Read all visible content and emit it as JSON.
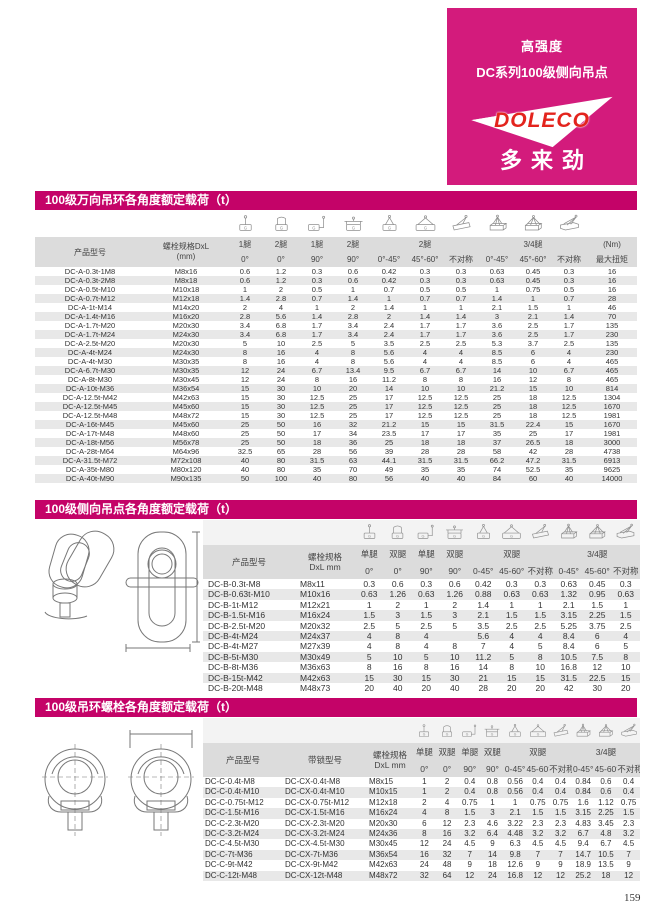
{
  "banner": {
    "line1": "高强度",
    "line2": "DC系列100级侧向吊点",
    "logo": "DOLECO",
    "logo_cn": "多来劲"
  },
  "colors": {
    "banner_magenta": "#d31b7c",
    "section_bar_magenta": "#c40368",
    "logo_red": "#e3241d",
    "header_gray": "#dcdcdc",
    "row_alt_gray": "#e8e8e8"
  },
  "page": {
    "number": "159"
  },
  "t1": {
    "title": "100级万向吊环各角度额定载荷（t）",
    "icons": [
      "sling-1leg-0deg",
      "sling-2leg-0deg",
      "sling-1leg-90deg",
      "sling-2leg-90deg",
      "sling-2leg-0-45deg",
      "sling-2leg-45-60deg",
      "sling-2leg-asym",
      "sling-34leg-0-45deg",
      "sling-34leg-45-60deg",
      "sling-34leg-asym"
    ],
    "header": {
      "product": "产品型号",
      "bolt1": "螺栓规格DxL",
      "bolt2": "(mm)",
      "legs": [
        "1腿",
        "2腿",
        "1腿",
        "2腿"
      ],
      "group2": "2腿",
      "group34": "3/4腿",
      "nm": "(Nm)",
      "angles": [
        "0°",
        "0°",
        "90°",
        "90°",
        "0°-45°",
        "45°-60°",
        "不对称",
        "0°-45°",
        "45°-60°",
        "不对称"
      ],
      "torque": "最大扭矩"
    },
    "rows": [
      [
        "DC-A-0.3t-1M8",
        "M8x16",
        "0.6",
        "1.2",
        "0.3",
        "0.6",
        "0.42",
        "0.3",
        "0.3",
        "0.63",
        "0.45",
        "0.3",
        "16"
      ],
      [
        "DC-A-0.3t-2M8",
        "M8x18",
        "0.6",
        "1.2",
        "0.3",
        "0.6",
        "0.42",
        "0.3",
        "0.3",
        "0.63",
        "0.45",
        "0.3",
        "16"
      ],
      [
        "DC-A-0.5t-M10",
        "M10x18",
        "1",
        "2",
        "0.5",
        "1",
        "0.7",
        "0.5",
        "0.5",
        "1",
        "0.75",
        "0.5",
        "16"
      ],
      [
        "DC-A-0.7t-M12",
        "M12x18",
        "1.4",
        "2.8",
        "0.7",
        "1.4",
        "1",
        "0.7",
        "0.7",
        "1.4",
        "1",
        "0.7",
        "28"
      ],
      [
        "DC-A-1t-M14",
        "M14x20",
        "2",
        "4",
        "1",
        "2",
        "1.4",
        "1",
        "1",
        "2.1",
        "1.5",
        "1",
        "46"
      ],
      [
        "DC-A-1.4t-M16",
        "M16x20",
        "2.8",
        "5.6",
        "1.4",
        "2.8",
        "2",
        "1.4",
        "1.4",
        "3",
        "2.1",
        "1.4",
        "70"
      ],
      [
        "DC-A-1.7t-M20",
        "M20x30",
        "3.4",
        "6.8",
        "1.7",
        "3.4",
        "2.4",
        "1.7",
        "1.7",
        "3.6",
        "2.5",
        "1.7",
        "135"
      ],
      [
        "DC-A-1.7t-M24",
        "M24x30",
        "3.4",
        "6.8",
        "1.7",
        "3.4",
        "2.4",
        "1.7",
        "1.7",
        "3.6",
        "2.5",
        "1.7",
        "230"
      ],
      [
        "DC-A-2.5t-M20",
        "M20x30",
        "5",
        "10",
        "2.5",
        "5",
        "3.5",
        "2.5",
        "2.5",
        "5.3",
        "3.7",
        "2.5",
        "135"
      ],
      [
        "DC-A-4t-M24",
        "M24x30",
        "8",
        "16",
        "4",
        "8",
        "5.6",
        "4",
        "4",
        "8.5",
        "6",
        "4",
        "230"
      ],
      [
        "DC-A-4t-M30",
        "M30x35",
        "8",
        "16",
        "4",
        "8",
        "5.6",
        "4",
        "4",
        "8.5",
        "6",
        "4",
        "465"
      ],
      [
        "DC-A-6.7t-M30",
        "M30x35",
        "12",
        "24",
        "6.7",
        "13.4",
        "9.5",
        "6.7",
        "6.7",
        "14",
        "10",
        "6.7",
        "465"
      ],
      [
        "DC-A-8t-M30",
        "M30x45",
        "12",
        "24",
        "8",
        "16",
        "11.2",
        "8",
        "8",
        "16",
        "12",
        "8",
        "465"
      ],
      [
        "DC-A-10t-M36",
        "M36x54",
        "15",
        "30",
        "10",
        "20",
        "14",
        "10",
        "10",
        "21.2",
        "15",
        "10",
        "814"
      ],
      [
        "DC-A-12.5t-M42",
        "M42x63",
        "15",
        "30",
        "12.5",
        "25",
        "17",
        "12.5",
        "12.5",
        "25",
        "18",
        "12.5",
        "1304"
      ],
      [
        "DC-A-12.5t-M45",
        "M45x60",
        "15",
        "30",
        "12.5",
        "25",
        "17",
        "12.5",
        "12.5",
        "25",
        "18",
        "12.5",
        "1670"
      ],
      [
        "DC-A-12.5t-M48",
        "M48x72",
        "15",
        "30",
        "12.5",
        "25",
        "17",
        "12.5",
        "12.5",
        "25",
        "18",
        "12.5",
        "1981"
      ],
      [
        "DC-A-16t-M45",
        "M45x60",
        "25",
        "50",
        "16",
        "32",
        "21.2",
        "15",
        "15",
        "31.5",
        "22.4",
        "15",
        "1670"
      ],
      [
        "DC-A-17t-M48",
        "M48x60",
        "25",
        "50",
        "17",
        "34",
        "23.5",
        "17",
        "17",
        "35",
        "25",
        "17",
        "1981"
      ],
      [
        "DC-A-18t-M56",
        "M56x78",
        "25",
        "50",
        "18",
        "36",
        "25",
        "18",
        "18",
        "37",
        "26.5",
        "18",
        "3000"
      ],
      [
        "DC-A-28t-M64",
        "M64x96",
        "32.5",
        "65",
        "28",
        "56",
        "39",
        "28",
        "28",
        "58",
        "42",
        "28",
        "4738"
      ],
      [
        "DC-A-31.5t-M72",
        "M72x108",
        "40",
        "80",
        "31.5",
        "63",
        "44.1",
        "31.5",
        "31.5",
        "66.2",
        "47.2",
        "31.5",
        "6913"
      ],
      [
        "DC-A-35t-M80",
        "M80x120",
        "40",
        "80",
        "35",
        "70",
        "49",
        "35",
        "35",
        "74",
        "52.5",
        "35",
        "9625"
      ],
      [
        "DC-A-40t-M90",
        "M90x135",
        "50",
        "100",
        "40",
        "80",
        "56",
        "40",
        "40",
        "84",
        "60",
        "40",
        "14000"
      ]
    ]
  },
  "t2": {
    "title": "100级侧向吊点各角度额定载荷（t）",
    "icons": [
      "sling-1leg-0deg",
      "sling-2leg-0deg",
      "sling-1leg-90deg",
      "sling-2leg-90deg",
      "sling-2leg-0-45deg",
      "sling-2leg-45-60deg",
      "sling-2leg-asym",
      "sling-34leg-0-45deg",
      "sling-34leg-45-60deg",
      "sling-34leg-asym"
    ],
    "header": {
      "product": "产品型号",
      "bolt1": "螺栓规格",
      "bolt2": "DxL mm",
      "legs": [
        "单腿",
        "双腿",
        "单腿",
        "双腿"
      ],
      "group2": "双腿",
      "group34": "3/4腿",
      "angles": [
        "0°",
        "0°",
        "90°",
        "90°",
        "0-45°",
        "45-60°",
        "不对称",
        "0-45°",
        "45-60°",
        "不对称"
      ]
    },
    "rows": [
      [
        "DC-B-0.3t-M8",
        "M8x11",
        "0.3",
        "0.6",
        "0.3",
        "0.6",
        "0.42",
        "0.3",
        "0.3",
        "0.63",
        "0.45",
        "0.3"
      ],
      [
        "DC-B-0.63t-M10",
        "M10x16",
        "0.63",
        "1.26",
        "0.63",
        "1.26",
        "0.88",
        "0.63",
        "0.63",
        "1.32",
        "0.95",
        "0.63"
      ],
      [
        "DC-B-1t-M12",
        "M12x21",
        "1",
        "2",
        "1",
        "2",
        "1.4",
        "1",
        "1",
        "2.1",
        "1.5",
        "1"
      ],
      [
        "DC-B-1.5t-M16",
        "M16x24",
        "1.5",
        "3",
        "1.5",
        "3",
        "2.1",
        "1.5",
        "1.5",
        "3.15",
        "2.25",
        "1.5"
      ],
      [
        "DC-B-2.5t-M20",
        "M20x32",
        "2.5",
        "5",
        "2.5",
        "5",
        "3.5",
        "2.5",
        "2.5",
        "5.25",
        "3.75",
        "2.5"
      ],
      [
        "DC-B-4t-M24",
        "M24x37",
        "4",
        "8",
        "4",
        "",
        "5.6",
        "4",
        "4",
        "8.4",
        "6",
        "4"
      ],
      [
        "DC-B-4t-M27",
        "M27x39",
        "4",
        "8",
        "4",
        "8",
        "7",
        "4",
        "5",
        "8.4",
        "6",
        "5"
      ],
      [
        "DC-B-5t-M30",
        "M30x49",
        "5",
        "10",
        "5",
        "10",
        "11.2",
        "5",
        "8",
        "10.5",
        "7.5",
        "8"
      ],
      [
        "DC-B-8t-M36",
        "M36x63",
        "8",
        "16",
        "8",
        "16",
        "14",
        "8",
        "10",
        "16.8",
        "12",
        "10"
      ],
      [
        "DC-B-15t-M42",
        "M42x63",
        "15",
        "30",
        "15",
        "30",
        "21",
        "15",
        "15",
        "31.5",
        "22.5",
        "15"
      ],
      [
        "DC-B-20t-M48",
        "M48x73",
        "20",
        "40",
        "20",
        "40",
        "28",
        "20",
        "20",
        "42",
        "30",
        "20"
      ]
    ]
  },
  "t3": {
    "title": "100级吊环螺栓各角度额定载荷（t）",
    "icons": [
      "sling-1leg-0deg",
      "sling-2leg-0deg",
      "sling-1leg-90deg",
      "sling-2leg-90deg",
      "sling-2leg-0-45deg",
      "sling-2leg-45-60deg",
      "sling-2leg-asym",
      "sling-34leg-0-45deg",
      "sling-34leg-45-60deg",
      "sling-34leg-asym"
    ],
    "header": {
      "product": "产品型号",
      "lock": "带锁型号",
      "bolt1": "螺栓规格",
      "bolt2": "DxL mm",
      "legs": [
        "单腿",
        "双腿",
        "单腿",
        "双腿"
      ],
      "group2": "双腿",
      "group34": "3/4腿",
      "angles": [
        "0°",
        "0°",
        "90°",
        "90°",
        "0-45°",
        "45-60°",
        "不对称",
        "0-45°",
        "45-60°",
        "不对称"
      ]
    },
    "rows": [
      [
        "DC-C-0.4t-M8",
        "DC-CX-0.4t-M8",
        "M8x15",
        "1",
        "2",
        "0.4",
        "0.8",
        "0.56",
        "0.4",
        "0.4",
        "0.84",
        "0.6",
        "0.4"
      ],
      [
        "DC-C-0.4t-M10",
        "DC-CX-0.4t-M10",
        "M10x15",
        "1",
        "2",
        "0.4",
        "0.8",
        "0.56",
        "0.4",
        "0.4",
        "0.84",
        "0.6",
        "0.4"
      ],
      [
        "DC-C-0.75t-M12",
        "DC-CX-0.75t-M12",
        "M12x18",
        "2",
        "4",
        "0.75",
        "1",
        "1",
        "0.75",
        "0.75",
        "1.6",
        "1.12",
        "0.75"
      ],
      [
        "DC-C-1.5t-M16",
        "DC-CX-1.5t-M16",
        "M16x24",
        "4",
        "8",
        "1.5",
        "3",
        "2.1",
        "1.5",
        "1.5",
        "3.15",
        "2.25",
        "1.5"
      ],
      [
        "DC-C-2.3t-M20",
        "DC-CX-2.3t-M20",
        "M20x30",
        "6",
        "12",
        "2.3",
        "4.6",
        "3.22",
        "2.3",
        "2.3",
        "4.83",
        "3.45",
        "2.3"
      ],
      [
        "DC-C-3.2t-M24",
        "DC-CX-3.2t-M24",
        "M24x36",
        "8",
        "16",
        "3.2",
        "6.4",
        "4.48",
        "3.2",
        "3.2",
        "6.7",
        "4.8",
        "3.2"
      ],
      [
        "DC-C-4.5t-M30",
        "DC-CX-4.5t-M30",
        "M30x45",
        "12",
        "24",
        "4.5",
        "9",
        "6.3",
        "4.5",
        "4.5",
        "9.4",
        "6.7",
        "4.5"
      ],
      [
        "DC-C-7t-M36",
        "DC-CX-7t-M36",
        "M36x54",
        "16",
        "32",
        "7",
        "14",
        "9.8",
        "7",
        "7",
        "14.7",
        "10.5",
        "7"
      ],
      [
        "DC-C-9t-M42",
        "DC-CX-9t-M42",
        "M42x63",
        "24",
        "48",
        "9",
        "18",
        "12.6",
        "9",
        "9",
        "18.9",
        "13.5",
        "9"
      ],
      [
        "DC-C-12t-M48",
        "DC-CX-12t-M48",
        "M48x72",
        "32",
        "64",
        "12",
        "24",
        "16.8",
        "12",
        "12",
        "25.2",
        "18",
        "12"
      ]
    ]
  }
}
